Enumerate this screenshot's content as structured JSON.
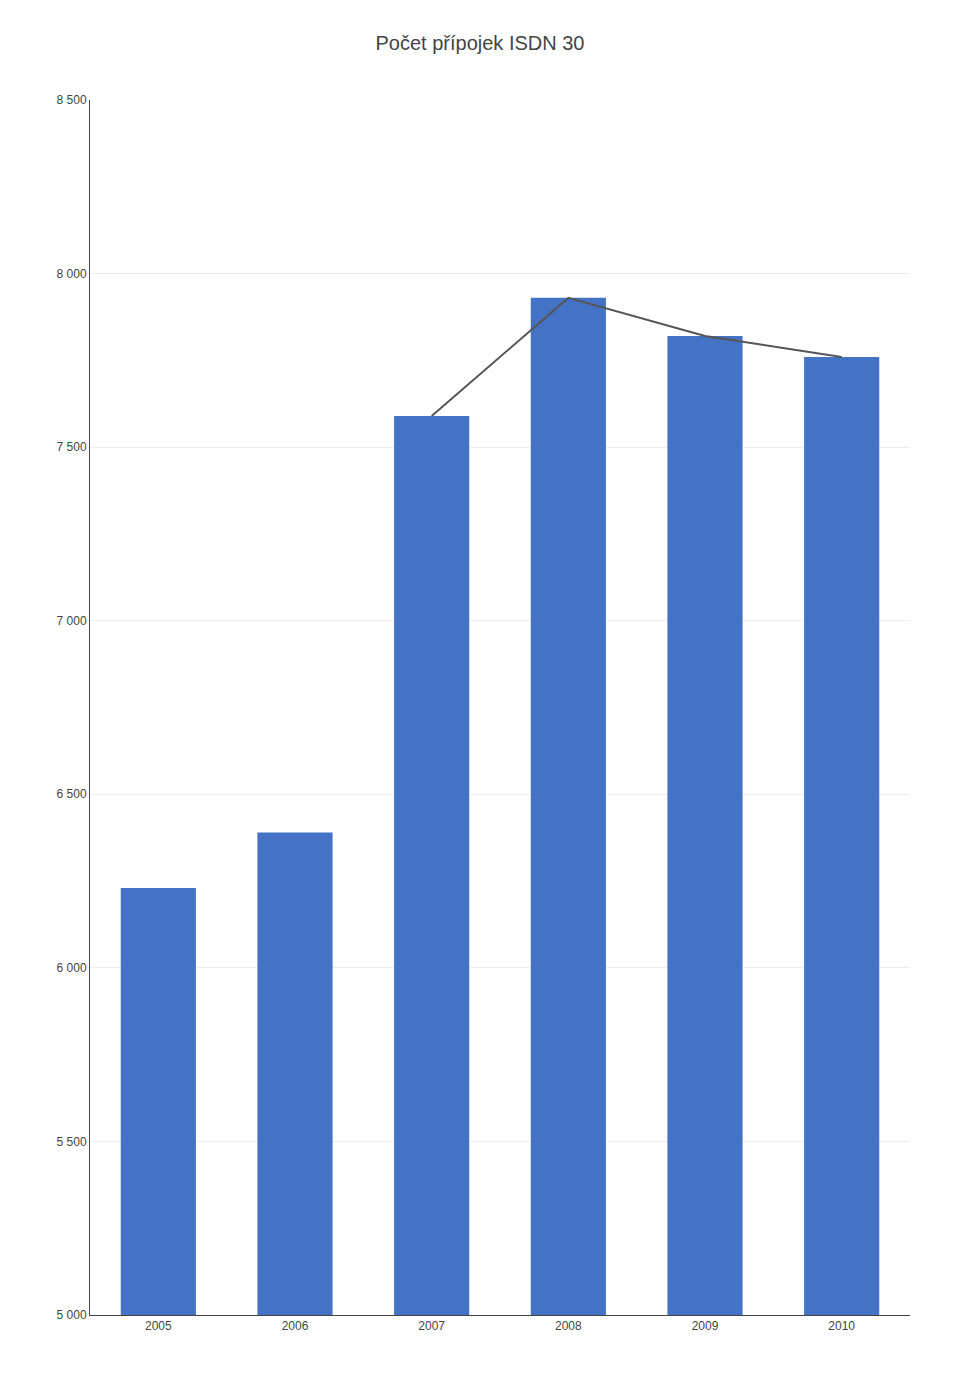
{
  "chart_data": {
    "type": "bar",
    "title": "Počet přípojek ISDN 30",
    "categories": [
      "2005",
      "2006",
      "2007",
      "2008",
      "2009",
      "2010"
    ],
    "series": [
      {
        "type": "bar",
        "color": "#4472C4",
        "values": [
          6230,
          6390,
          7590,
          7930,
          7820,
          7760
        ]
      },
      {
        "type": "line",
        "color": "#555555",
        "values": [
          null,
          null,
          7590,
          7930,
          7820,
          7760
        ]
      }
    ],
    "ylim": [
      5000,
      8500
    ],
    "yticks": [
      {
        "value": 5000,
        "label": "5 000"
      },
      {
        "value": 5500,
        "label": "5 500"
      },
      {
        "value": 6000,
        "label": "6 000"
      },
      {
        "value": 6500,
        "label": "6 500"
      },
      {
        "value": 7000,
        "label": "7 000"
      },
      {
        "value": 7500,
        "label": "7 500"
      },
      {
        "value": 8000,
        "label": "8 000"
      },
      {
        "value": 8500,
        "label": "8 500"
      }
    ],
    "grid": true
  }
}
